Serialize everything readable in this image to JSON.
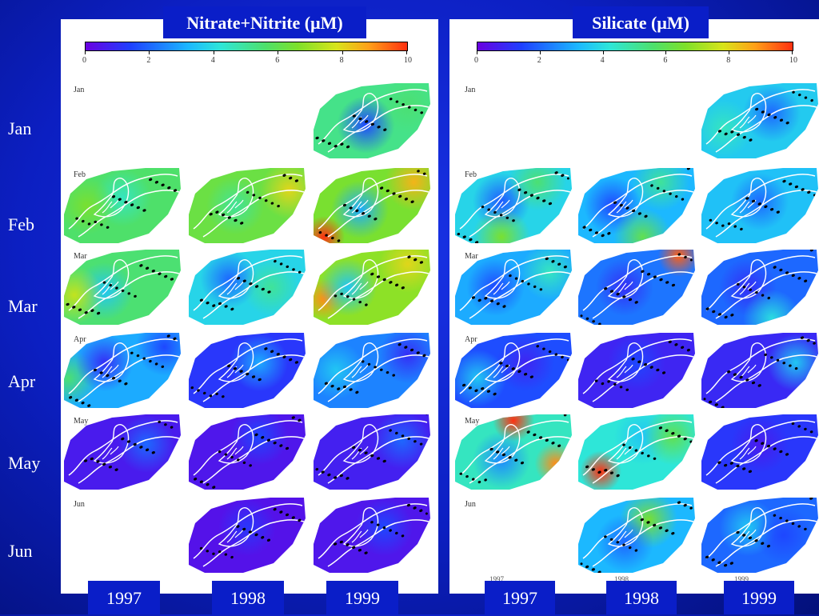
{
  "row_labels": [
    "Jan",
    "Feb",
    "Mar",
    "Apr",
    "May",
    "Jun"
  ],
  "year_labels": [
    "1997",
    "1998",
    "1999"
  ],
  "colors": {
    "background": "#0c1fc2",
    "panel": "#ffffff",
    "label_box": "#0a1ec8",
    "contour": "#ffffff",
    "station": "#000000"
  },
  "chart_data": [
    {
      "type": "heatmap",
      "title": "Nitrate+Nitrite (μM)",
      "colorbar": {
        "min": 0,
        "max": 10,
        "ticks": [
          "0",
          "2",
          "4",
          "6",
          "8",
          "10"
        ]
      },
      "rows": [
        "Jan",
        "Feb",
        "Mar",
        "Apr",
        "May",
        "Jun"
      ],
      "columns": [
        "1997",
        "1998",
        "1999"
      ],
      "panel_month_labels": [
        "Jan",
        "Feb",
        "Mar",
        "Apr",
        "May",
        "Jun"
      ],
      "panel_year_labels": [],
      "maps": [
        {
          "month": "Jan",
          "year": "1999",
          "mean": 5.2,
          "spots": [
            [
              0.45,
              0.55,
              1.5
            ],
            [
              0.8,
              0.3,
              5.5
            ]
          ]
        },
        {
          "month": "Feb",
          "year": "1997",
          "mean": 5.6,
          "spots": [
            [
              0.5,
              0.4,
              4.5
            ],
            [
              0.2,
              0.5,
              6.5
            ]
          ]
        },
        {
          "month": "Feb",
          "year": "1998",
          "mean": 6.2,
          "spots": [
            [
              0.85,
              0.3,
              8.0
            ],
            [
              0.4,
              0.5,
              5.0
            ]
          ]
        },
        {
          "month": "Feb",
          "year": "1999",
          "mean": 6.5,
          "spots": [
            [
              0.85,
              0.2,
              8.5
            ],
            [
              0.1,
              0.9,
              10
            ],
            [
              0.4,
              0.55,
              3.0
            ]
          ]
        },
        {
          "month": "Mar",
          "year": "1997",
          "mean": 5.5,
          "spots": [
            [
              0.35,
              0.55,
              3.5
            ],
            [
              0.1,
              0.6,
              7.5
            ]
          ]
        },
        {
          "month": "Mar",
          "year": "1998",
          "mean": 3.8,
          "spots": [
            [
              0.35,
              0.4,
              2.0
            ],
            [
              0.7,
              0.5,
              5.0
            ]
          ]
        },
        {
          "month": "Mar",
          "year": "1999",
          "mean": 6.8,
          "spots": [
            [
              0.1,
              0.65,
              9.0
            ],
            [
              0.3,
              0.5,
              3.5
            ],
            [
              0.8,
              0.2,
              8.0
            ]
          ]
        },
        {
          "month": "Apr",
          "year": "1997",
          "mean": 3.0,
          "spots": [
            [
              0.05,
              0.6,
              5.5
            ],
            [
              0.35,
              0.4,
              1.0
            ],
            [
              0.85,
              0.2,
              1.5
            ]
          ]
        },
        {
          "month": "Apr",
          "year": "1998",
          "mean": 1.2,
          "spots": [
            [
              0.6,
              0.4,
              3.0
            ]
          ]
        },
        {
          "month": "Apr",
          "year": "1999",
          "mean": 2.4,
          "spots": [
            [
              0.2,
              0.5,
              3.5
            ],
            [
              0.8,
              0.3,
              1.0
            ]
          ]
        },
        {
          "month": "May",
          "year": "1997",
          "mean": 0.6,
          "spots": [
            [
              0.7,
              0.4,
              2.0
            ]
          ]
        },
        {
          "month": "May",
          "year": "1998",
          "mean": 0.5,
          "spots": [
            [
              0.6,
              0.3,
              1.5
            ]
          ]
        },
        {
          "month": "May",
          "year": "1999",
          "mean": 0.7,
          "spots": [
            [
              0.75,
              0.35,
              2.0
            ]
          ]
        },
        {
          "month": "Jun",
          "year": "1998",
          "mean": 0.4,
          "spots": [
            [
              0.5,
              0.4,
              1.2
            ]
          ]
        },
        {
          "month": "Jun",
          "year": "1999",
          "mean": 0.5,
          "spots": [
            [
              0.6,
              0.4,
              1.5
            ]
          ]
        }
      ]
    },
    {
      "type": "heatmap",
      "title": "Silicate (μM)",
      "colorbar": {
        "min": 0,
        "max": 10,
        "ticks": [
          "0",
          "2",
          "4",
          "6",
          "8",
          "10"
        ]
      },
      "rows": [
        "Jan",
        "Feb",
        "Mar",
        "Apr",
        "May",
        "Jun"
      ],
      "columns": [
        "1997",
        "1998",
        "1999"
      ],
      "panel_month_labels": [
        "Jan",
        "Feb",
        "Mar",
        "Apr",
        "May",
        "Jun"
      ],
      "panel_year_labels": [
        "1997",
        "1998",
        "1999"
      ],
      "maps": [
        {
          "month": "Jan",
          "year": "1999",
          "mean": 3.6,
          "spots": [
            [
              0.6,
              0.4,
              2.0
            ],
            [
              0.2,
              0.6,
              4.5
            ]
          ]
        },
        {
          "month": "Feb",
          "year": "1997",
          "mean": 3.8,
          "spots": [
            [
              0.4,
              0.45,
              1.8
            ],
            [
              0.7,
              0.2,
              5.5
            ],
            [
              0.4,
              0.9,
              6.5
            ]
          ]
        },
        {
          "month": "Feb",
          "year": "1998",
          "mean": 3.2,
          "spots": [
            [
              0.3,
              0.5,
              1.5
            ],
            [
              0.55,
              0.9,
              6.0
            ],
            [
              0.7,
              0.2,
              5.0
            ]
          ]
        },
        {
          "month": "Feb",
          "year": "1999",
          "mean": 3.4,
          "spots": [
            [
              0.5,
              0.45,
              2.0
            ]
          ]
        },
        {
          "month": "Mar",
          "year": "1997",
          "mean": 3.0,
          "spots": [
            [
              0.35,
              0.5,
              1.5
            ],
            [
              0.8,
              0.3,
              4.5
            ]
          ]
        },
        {
          "month": "Mar",
          "year": "1998",
          "mean": 2.2,
          "spots": [
            [
              0.85,
              0.1,
              9.5
            ],
            [
              0.4,
              0.5,
              1.0
            ]
          ]
        },
        {
          "month": "Mar",
          "year": "1999",
          "mean": 2.0,
          "spots": [
            [
              0.4,
              0.5,
              1.0
            ],
            [
              0.6,
              0.9,
              4.0
            ]
          ]
        },
        {
          "month": "Apr",
          "year": "1997",
          "mean": 1.6,
          "spots": [
            [
              0.2,
              0.6,
              3.5
            ],
            [
              0.6,
              0.4,
              0.8
            ]
          ]
        },
        {
          "month": "Apr",
          "year": "1998",
          "mean": 0.8,
          "spots": [
            [
              0.5,
              0.4,
              1.5
            ]
          ]
        },
        {
          "month": "Apr",
          "year": "1999",
          "mean": 0.9,
          "spots": [
            [
              0.8,
              0.4,
              3.5
            ]
          ]
        },
        {
          "month": "May",
          "year": "1997",
          "mean": 4.5,
          "spots": [
            [
              0.5,
              0.1,
              10
            ],
            [
              0.85,
              0.65,
              9.0
            ],
            [
              0.4,
              0.6,
              2.5
            ]
          ]
        },
        {
          "month": "May",
          "year": "1998",
          "mean": 4.2,
          "spots": [
            [
              0.2,
              0.75,
              10
            ],
            [
              0.55,
              0.3,
              3.5
            ],
            [
              0.8,
              0.3,
              6.0
            ]
          ]
        },
        {
          "month": "May",
          "year": "1999",
          "mean": 1.2,
          "spots": [
            [
              0.5,
              0.4,
              0.6
            ]
          ]
        },
        {
          "month": "Jun",
          "year": "1998",
          "mean": 3.2,
          "spots": [
            [
              0.6,
              0.3,
              6.5
            ],
            [
              0.4,
              0.6,
              2.0
            ]
          ]
        },
        {
          "month": "Jun",
          "year": "1999",
          "mean": 2.0,
          "spots": [
            [
              0.4,
              0.4,
              3.5
            ],
            [
              0.7,
              0.5,
              1.5
            ]
          ]
        }
      ]
    }
  ]
}
